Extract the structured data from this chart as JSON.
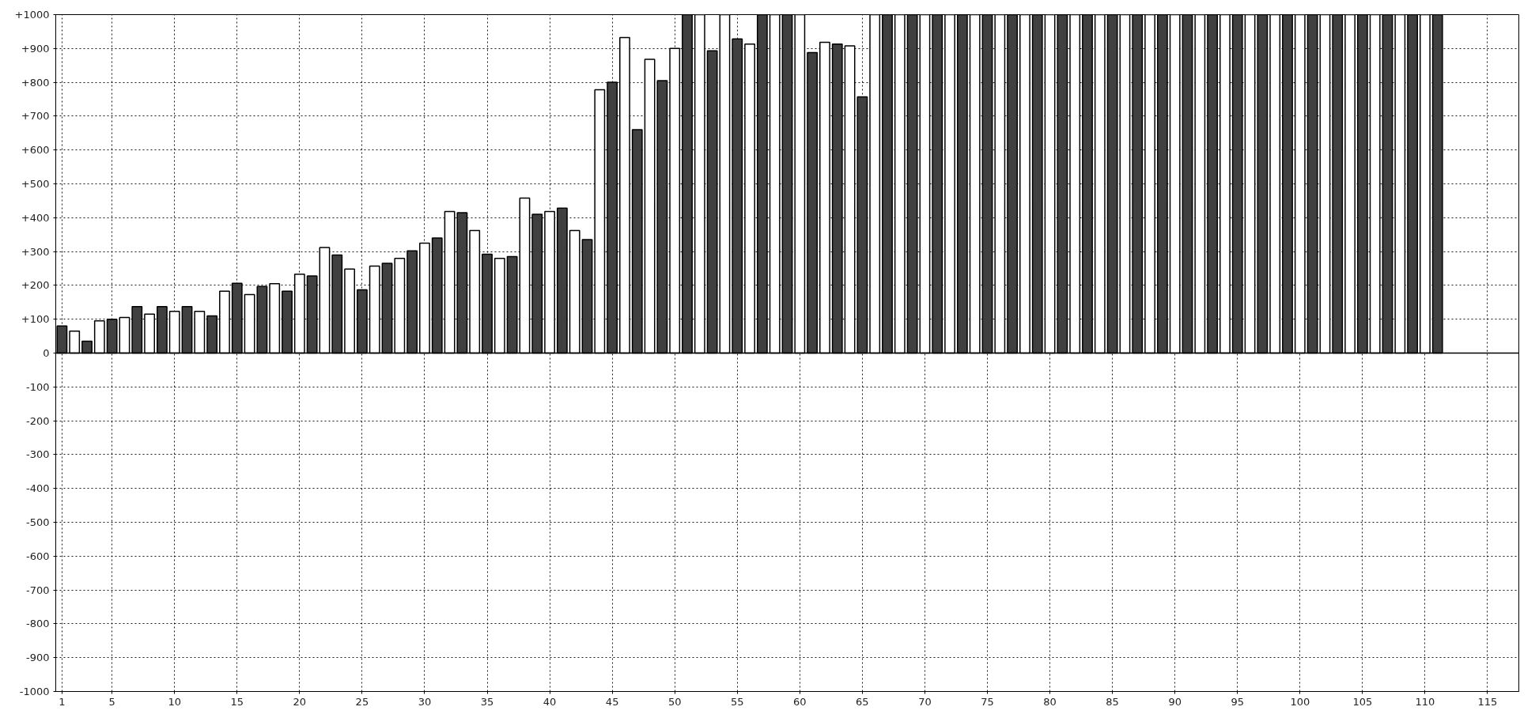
{
  "chart_data": {
    "type": "bar",
    "series": [
      {
        "color": "#404040",
        "x": [
          1,
          3,
          5,
          7,
          9,
          11,
          13,
          15,
          17,
          19,
          21,
          23,
          25,
          27,
          29,
          31,
          33,
          35,
          37,
          39,
          41,
          43,
          45,
          47,
          49,
          51,
          53,
          55,
          57,
          59,
          61,
          63,
          65,
          67,
          69,
          71,
          73,
          75,
          77,
          79,
          81,
          83,
          85,
          87,
          89,
          91,
          93,
          95,
          97,
          99,
          101,
          103,
          105,
          107,
          109,
          111
        ],
        "values": [
          80,
          35,
          100,
          137,
          137,
          137,
          110,
          206,
          197,
          183,
          228,
          290,
          187,
          265,
          302,
          340,
          415,
          292,
          285,
          410,
          428,
          335,
          800,
          660,
          805,
          1000,
          893,
          928,
          1000,
          1000,
          888,
          913,
          757,
          1000,
          1000,
          1000,
          1000,
          1000,
          1000,
          1000,
          1000,
          1000,
          1000,
          1000,
          1000,
          1000,
          1000,
          1000,
          1000,
          1000,
          1000,
          1000,
          1000,
          1000,
          1000,
          1000
        ]
      },
      {
        "color": "#ffffff",
        "x": [
          2,
          4,
          6,
          8,
          10,
          12,
          14,
          16,
          18,
          20,
          22,
          24,
          26,
          28,
          30,
          32,
          34,
          36,
          38,
          40,
          42,
          44,
          46,
          48,
          50,
          52,
          54,
          56,
          58,
          60,
          62,
          64,
          66,
          68,
          70,
          72,
          74,
          76,
          78,
          80,
          82,
          84,
          86,
          88,
          90,
          92,
          94,
          96,
          98,
          100,
          102,
          104,
          106,
          108,
          110
        ],
        "values": [
          65,
          95,
          105,
          115,
          123,
          123,
          183,
          173,
          205,
          233,
          312,
          248,
          257,
          280,
          325,
          418,
          362,
          280,
          458,
          418,
          362,
          778,
          932,
          868,
          900,
          1000,
          1000,
          913,
          1000,
          1000,
          918,
          908,
          1000,
          1000,
          1000,
          1000,
          1000,
          1000,
          1000,
          1000,
          1000,
          1000,
          1000,
          1000,
          1000,
          1000,
          1000,
          1000,
          1000,
          1000,
          1000,
          1000,
          1000,
          1000,
          1000
        ]
      }
    ],
    "xlim": [
      0.5,
      117.5
    ],
    "xticks": [
      1,
      5,
      10,
      15,
      20,
      25,
      30,
      35,
      40,
      45,
      50,
      55,
      60,
      65,
      70,
      75,
      80,
      85,
      90,
      95,
      100,
      105,
      110,
      115
    ],
    "ylim": [
      -1000,
      1000
    ],
    "yticks": [
      {
        "value": -1000,
        "label": "-1000"
      },
      {
        "value": -900,
        "label": "-900"
      },
      {
        "value": -800,
        "label": "-800"
      },
      {
        "value": -700,
        "label": "-700"
      },
      {
        "value": -600,
        "label": "-600"
      },
      {
        "value": -500,
        "label": "-500"
      },
      {
        "value": -400,
        "label": "-400"
      },
      {
        "value": -300,
        "label": "-300"
      },
      {
        "value": -200,
        "label": "-200"
      },
      {
        "value": -100,
        "label": "-100"
      },
      0,
      {
        "value": 100,
        "label": "+100"
      },
      {
        "value": 200,
        "label": "+200"
      },
      {
        "value": 300,
        "label": "+300"
      },
      {
        "value": 400,
        "label": "+400"
      },
      {
        "value": 500,
        "label": "+500"
      },
      {
        "value": 600,
        "label": "+600"
      },
      {
        "value": 700,
        "label": "+700"
      },
      {
        "value": 800,
        "label": "+800"
      },
      {
        "value": 900,
        "label": "+900"
      },
      {
        "value": 1000,
        "label": "+1000"
      }
    ],
    "grid": true
  }
}
